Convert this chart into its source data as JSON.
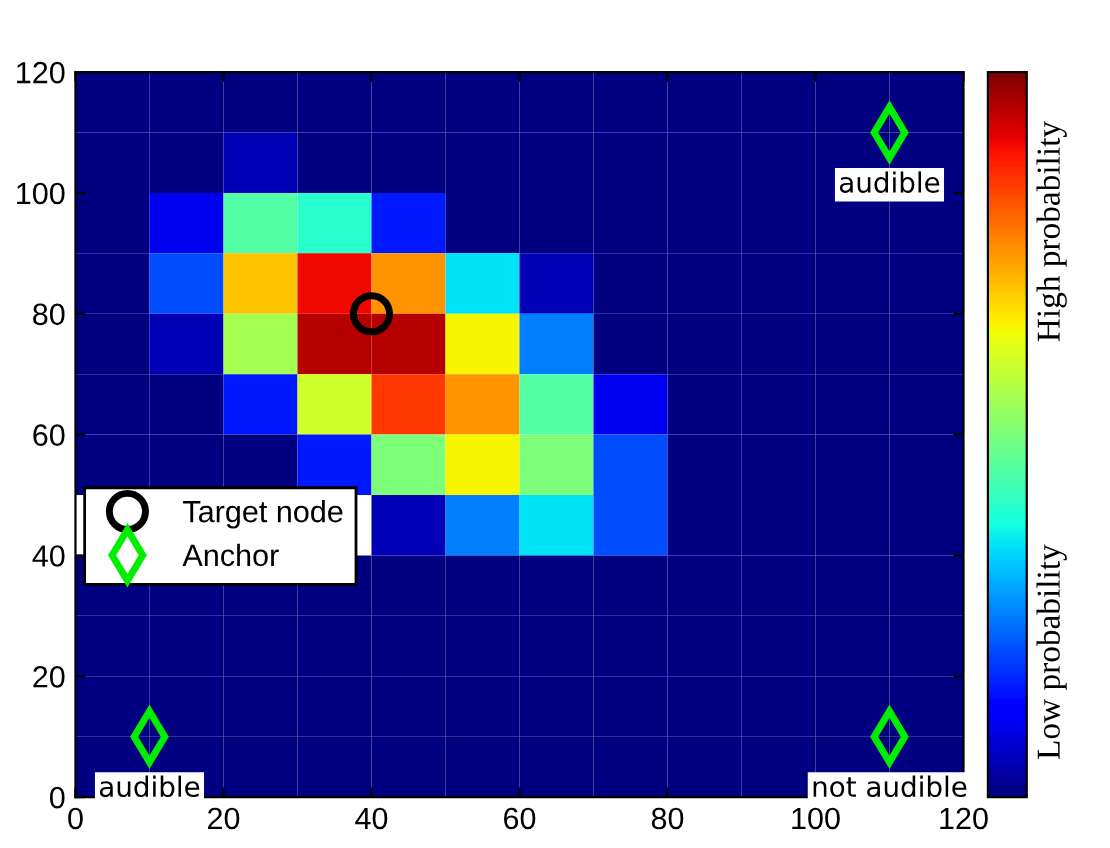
{
  "chart_data": [
    {
      "type": "heatmap",
      "categories": [
        null,
        null,
        null,
        null,
        null,
        null,
        null,
        null,
        null,
        null,
        null,
        null
      ],
      "y_categories": [
        null,
        null,
        null,
        null,
        null,
        null,
        null,
        null,
        null,
        null,
        null,
        null
      ],
      "cells": [
        [
          0,
          0,
          0,
          0,
          0,
          0,
          0,
          0,
          0,
          0,
          0,
          0
        ],
        [
          0,
          0,
          0.05,
          0,
          0,
          0,
          0,
          0,
          0,
          0,
          0,
          0
        ],
        [
          0,
          0.1,
          0.45,
          0.4,
          0.15,
          0,
          0,
          0,
          0,
          0,
          0,
          0
        ],
        [
          0,
          0.2,
          0.7,
          0.9,
          0.75,
          0.35,
          0.05,
          0,
          0,
          0,
          0,
          0
        ],
        [
          0,
          0.05,
          0.55,
          0.95,
          0.95,
          0.65,
          0.25,
          0,
          0,
          0,
          0,
          0
        ],
        [
          0,
          0,
          0.15,
          0.6,
          0.85,
          0.75,
          0.45,
          0.1,
          0,
          0,
          0,
          0
        ],
        [
          0,
          0,
          0,
          0.15,
          0.5,
          0.65,
          0.5,
          0.2,
          0,
          0,
          0,
          0
        ],
        [
          null,
          null,
          null,
          null,
          0.05,
          0.25,
          0.35,
          0.2,
          0,
          0,
          0,
          0
        ],
        [
          0,
          0,
          0,
          0,
          0,
          0,
          0,
          0,
          0,
          0,
          0,
          0
        ],
        [
          0,
          0,
          0,
          0,
          0,
          0,
          0,
          0,
          0,
          0,
          0,
          0
        ],
        [
          0,
          0,
          0,
          0,
          0,
          0,
          0,
          0,
          0,
          0,
          0,
          0
        ],
        [
          0,
          0,
          0,
          0,
          0,
          0,
          0,
          0,
          0,
          0,
          0,
          0
        ]
      ],
      "clim": [
        0,
        1
      ],
      "cticks": [
        {
          "value": 0.2,
          "label": "Low probability"
        },
        {
          "value": 0.78,
          "label": "High probability"
        }
      ],
      "tick_labels": false
    },
    {
      "type": "scatter",
      "xlim": [
        0,
        120
      ],
      "ylim": [
        0,
        120
      ],
      "xticks": [
        0,
        20,
        40,
        60,
        80,
        100,
        120
      ],
      "yticks": [
        0,
        20,
        40,
        60,
        80,
        100,
        120
      ],
      "series": [
        {
          "name": "Target node",
          "color": "#000000",
          "marker": "circle",
          "x": [
            40
          ],
          "values": [
            80
          ]
        },
        {
          "name": "Anchor",
          "color": "#00ee00",
          "marker": "diamond",
          "x": [
            110,
            10,
            110
          ],
          "values": [
            110,
            10,
            10
          ]
        }
      ],
      "annotations": [
        "audible",
        "audible",
        "not audible"
      ],
      "legend": "left",
      "grid": false
    }
  ]
}
